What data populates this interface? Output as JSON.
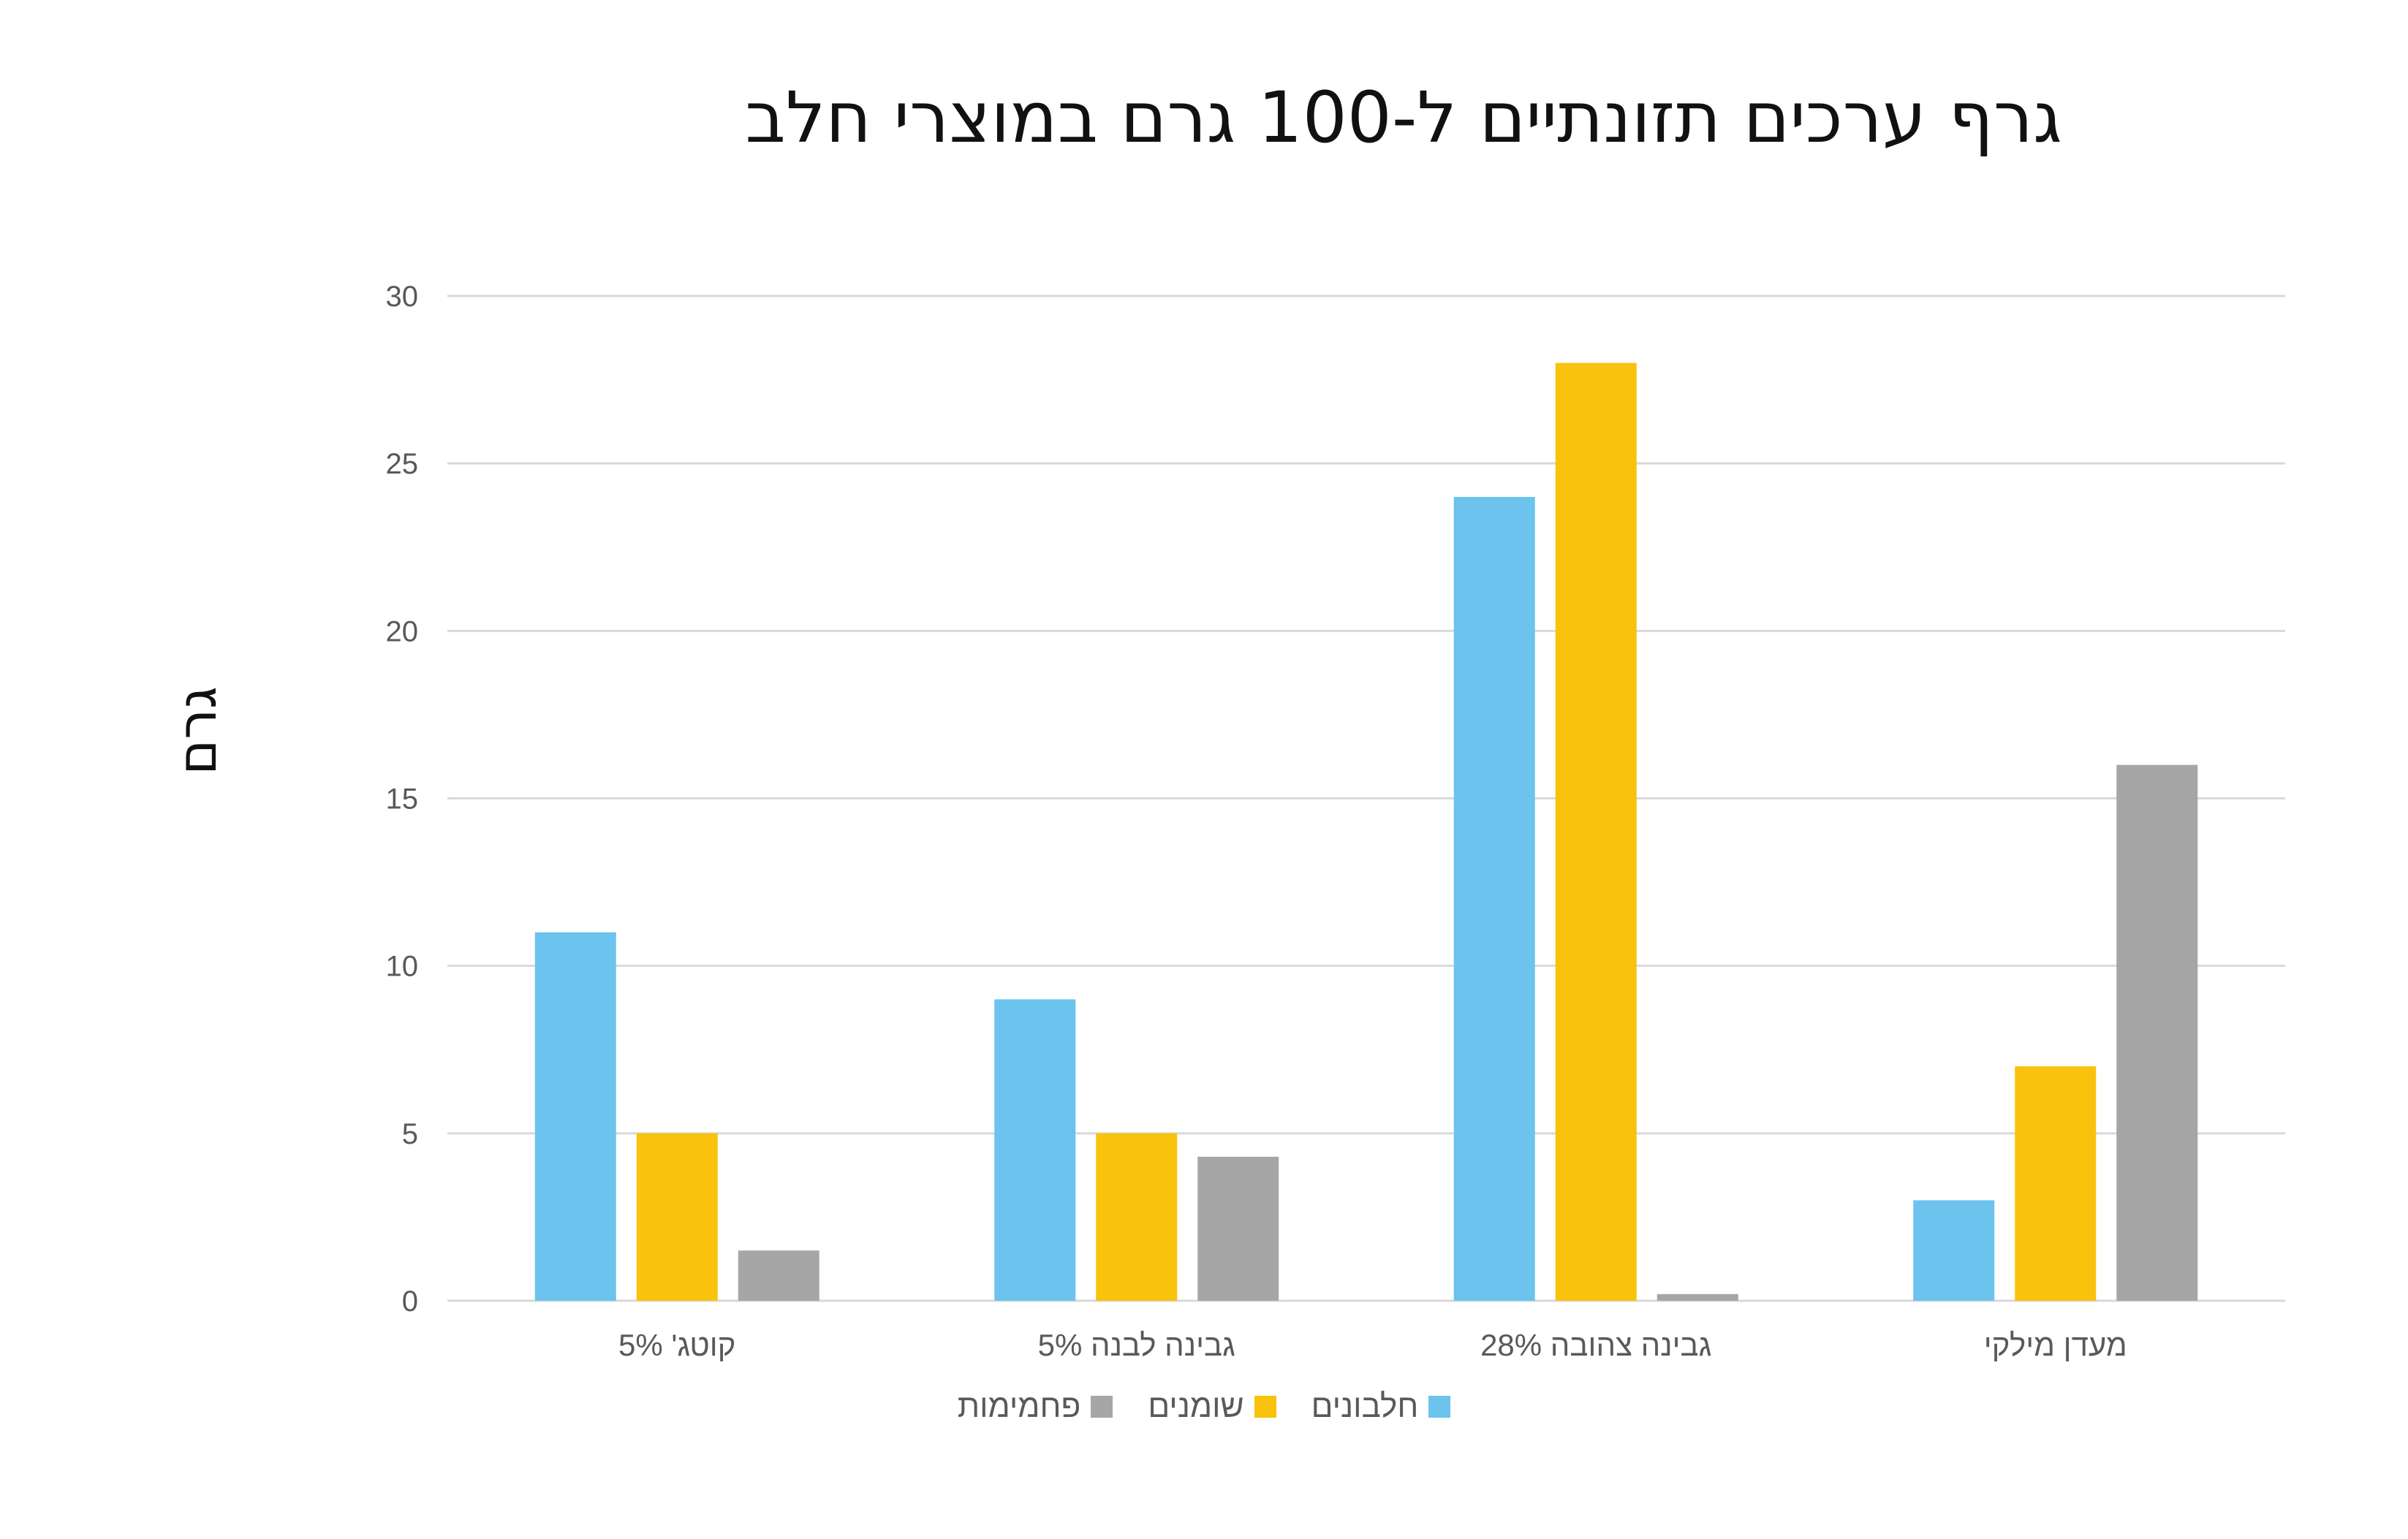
{
  "chart_data": {
    "type": "bar",
    "title": "גרף ערכים תזונתיים ל-100 גרם במוצרי חלב",
    "ylabel": "גרם",
    "xlabel": "",
    "ylim": [
      0,
      30
    ],
    "yticks": [
      "0",
      "5",
      "10",
      "15",
      "20",
      "25",
      "30"
    ],
    "grid": true,
    "legend_position": "bottom",
    "categories": [
      "קוטג' 5%",
      "גבינה לבנה 5%",
      "גבינה צהובה 28%",
      "מעדן מילקי"
    ],
    "series": [
      {
        "name": "חלבונים",
        "color": "#6BC3EE",
        "values": [
          11,
          9,
          24,
          3
        ]
      },
      {
        "name": "שומנים",
        "color": "#F8C20D",
        "values": [
          5,
          5,
          28,
          7
        ]
      },
      {
        "name": "פחמימות",
        "color": "#A6A6A6",
        "values": [
          1.5,
          4.3,
          0.2,
          16
        ]
      }
    ]
  }
}
